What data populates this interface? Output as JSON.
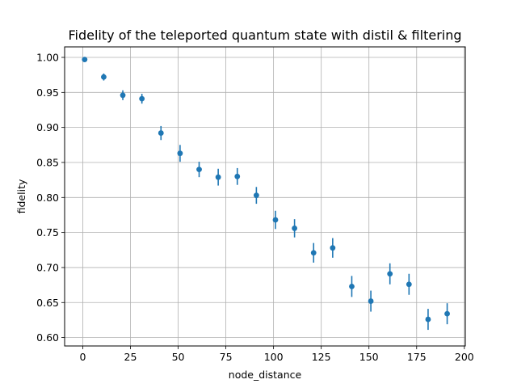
{
  "chart_data": {
    "type": "scatter",
    "title": "Fidelity of the teleported quantum state with distil & filtering",
    "xlabel": "node_distance",
    "ylabel": "fidelity",
    "xlim": [
      -9.5,
      200.5
    ],
    "ylim": [
      0.588,
      1.015
    ],
    "xticks": [
      0,
      25,
      50,
      75,
      100,
      125,
      150,
      175,
      200
    ],
    "yticks": [
      0.6,
      0.65,
      0.7,
      0.75,
      0.8,
      0.85,
      0.9,
      0.95,
      1.0
    ],
    "grid": true,
    "color": "#1f77b4",
    "x": [
      1,
      11,
      21,
      31,
      41,
      51,
      61,
      71,
      81,
      91,
      101,
      111,
      121,
      131,
      141,
      151,
      161,
      171,
      181,
      191
    ],
    "y": [
      0.997,
      0.972,
      0.946,
      0.941,
      0.892,
      0.863,
      0.84,
      0.829,
      0.83,
      0.803,
      0.768,
      0.756,
      0.721,
      0.728,
      0.673,
      0.652,
      0.691,
      0.676,
      0.626,
      0.634
    ],
    "yerr": [
      0.003,
      0.005,
      0.007,
      0.007,
      0.01,
      0.012,
      0.011,
      0.012,
      0.012,
      0.012,
      0.013,
      0.013,
      0.014,
      0.014,
      0.015,
      0.015,
      0.015,
      0.015,
      0.015,
      0.015
    ]
  }
}
